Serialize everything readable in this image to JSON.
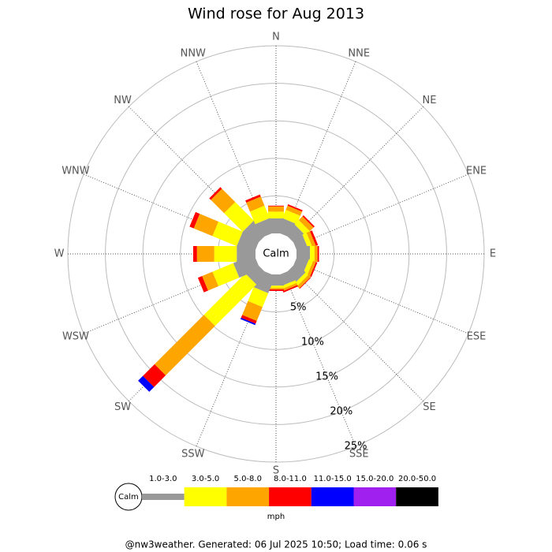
{
  "chart_data": {
    "type": "windrose",
    "title": "Wind rose for Aug 2013",
    "categories": [
      "N",
      "NNE",
      "NE",
      "ENE",
      "E",
      "ESE",
      "SE",
      "SSE",
      "S",
      "SSW",
      "SW",
      "WSW",
      "W",
      "WNW",
      "NW",
      "NNW"
    ],
    "calm_label": "Calm",
    "unit_label": "mph",
    "rlim": [
      0,
      25
    ],
    "rticks": [
      {
        "value": 5,
        "label": "5%"
      },
      {
        "value": 10,
        "label": "10%"
      },
      {
        "value": 15,
        "label": "15%"
      },
      {
        "value": 20,
        "label": "20%"
      },
      {
        "value": 25,
        "label": "25%"
      }
    ],
    "series": [
      {
        "name": "1.0-3.0",
        "color": "#999999",
        "values": [
          2,
          2,
          1.8,
          1.5,
          1.8,
          1.6,
          1.8,
          1.5,
          1.5,
          2.5,
          2,
          3,
          2.5,
          2.5,
          2.5,
          2
        ]
      },
      {
        "name": "3.0-5.0",
        "color": "#ffff00",
        "values": [
          0.9,
          1.2,
          0.8,
          0.6,
          0.6,
          0.6,
          0.5,
          0.4,
          0.3,
          2,
          7.8,
          3,
          3,
          3.5,
          3.5,
          1.8
        ]
      },
      {
        "name": "5.0-8.0",
        "color": "#ffa500",
        "values": [
          0.7,
          0.6,
          0.7,
          0.5,
          0.4,
          0.4,
          0.4,
          0.3,
          0.2,
          2,
          9.3,
          1.5,
          2.3,
          2.7,
          2.5,
          1.3
        ]
      },
      {
        "name": "8.0-11.0",
        "color": "#ff0000",
        "values": [
          0.1,
          0.2,
          0.2,
          0.3,
          0.2,
          0.2,
          0.1,
          0.2,
          0.2,
          0.4,
          2.2,
          0.6,
          0.5,
          0.6,
          0.3,
          0.3
        ]
      },
      {
        "name": "11.0-15.0",
        "color": "#0000ff",
        "values": [
          0,
          0,
          0,
          0,
          0,
          0,
          0,
          0,
          0,
          0.2,
          0.9,
          0,
          0,
          0,
          0,
          0
        ]
      },
      {
        "name": "15.0-20.0",
        "color": "#a020f0",
        "values": [
          0,
          0,
          0,
          0,
          0,
          0,
          0,
          0,
          0,
          0,
          0,
          0,
          0,
          0,
          0,
          0
        ]
      },
      {
        "name": "20.0-50.0",
        "color": "#000000",
        "values": [
          0,
          0,
          0,
          0,
          0,
          0,
          0,
          0,
          0,
          0,
          0,
          0,
          0,
          0,
          0,
          0
        ]
      }
    ],
    "footer": "@nw3weather. Generated: 06 Jul 2025 10:50; Load time: 0.06 s"
  }
}
